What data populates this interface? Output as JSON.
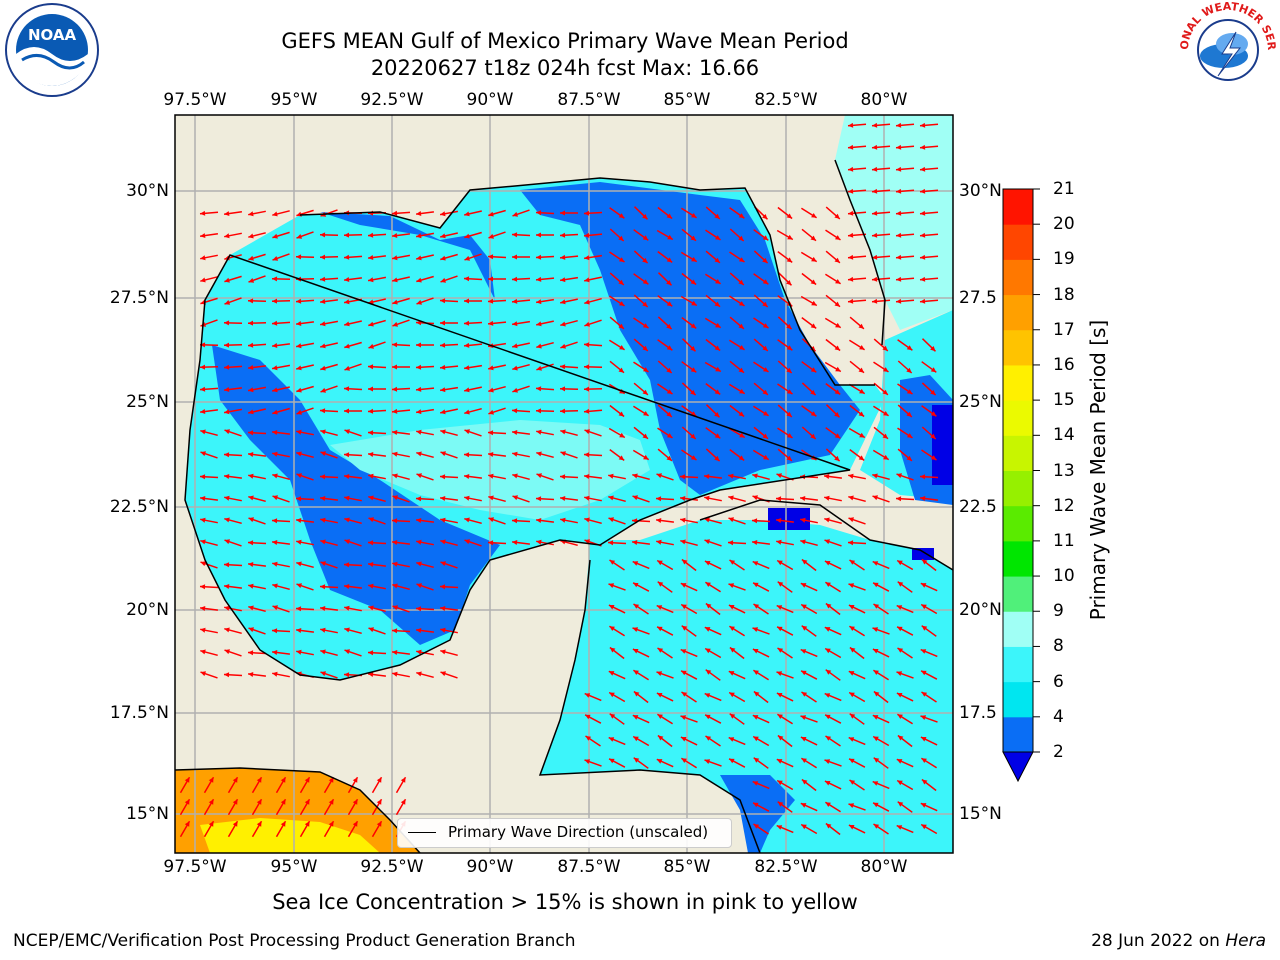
{
  "header": {
    "title_line1": "GEFS MEAN Gulf of Mexico Primary Wave Mean Period",
    "title_line2": "20220627 t18z 024h fcst   Max: 16.66"
  },
  "map": {
    "lon_labels": [
      "97.5°W",
      "95°W",
      "92.5°W",
      "90°W",
      "87.5°W",
      "85°W",
      "82.5°W",
      "80°W"
    ],
    "lat_labels": [
      "30°N",
      "27.5°N",
      "25°N",
      "22.5°N",
      "20°N",
      "17.5°N",
      "15°N"
    ],
    "lat_labels_right": [
      "30°N",
      "27.5",
      "25°N",
      "22.5",
      "20°N",
      "17.5",
      "15°N"
    ],
    "land_color": "#efecdc",
    "grid_color": "#b0b0b0",
    "arrow_color": "#ff0000",
    "legend_label": "Primary Wave Direction (unscaled)"
  },
  "colorbar": {
    "label": "Primary Wave Mean Period [s]",
    "ticks": [
      "2",
      "4",
      "6",
      "8",
      "9",
      "10",
      "11",
      "12",
      "13",
      "14",
      "15",
      "16",
      "17",
      "18",
      "19",
      "20",
      "21"
    ],
    "colors": [
      "#0000e6",
      "#0a6ef5",
      "#00e6f0",
      "#3cf5fa",
      "#a0fff5",
      "#50f07a",
      "#00e600",
      "#5aeb00",
      "#96f000",
      "#c8f500",
      "#ebfa00",
      "#fff000",
      "#ffc300",
      "#ffa000",
      "#ff7800",
      "#ff4600",
      "#ff1400"
    ]
  },
  "notes": {
    "sea_ice": "Sea Ice Concentration > 15% is shown in pink to yellow",
    "credit": "NCEP/EMC/Verification Post Processing Product Generation Branch",
    "date": "28 Jun 2022 on",
    "host": "Hera"
  },
  "logos": {
    "noaa": "NOAA",
    "nws_top": "NATIONAL WEATHER SERVICE"
  }
}
